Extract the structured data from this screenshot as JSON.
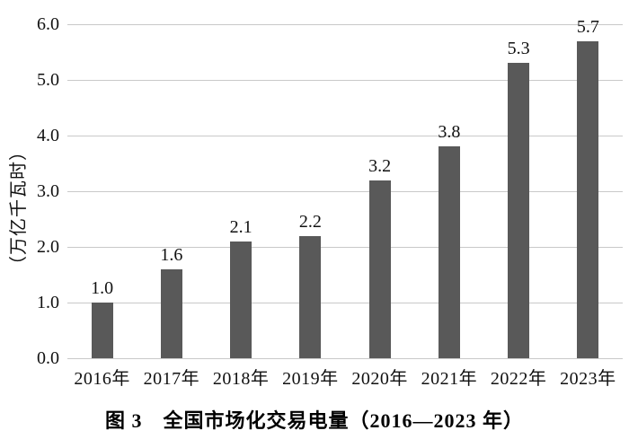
{
  "figure": {
    "caption": "图 3　全国市场化交易电量（2016—2023 年）"
  },
  "chart_data": {
    "type": "bar",
    "title": "图 3　全国市场化交易电量（2016—2023 年）",
    "categories": [
      "2016年",
      "2017年",
      "2018年",
      "2019年",
      "2020年",
      "2021年",
      "2022年",
      "2023年"
    ],
    "values": [
      1.0,
      1.6,
      2.1,
      2.2,
      3.2,
      3.8,
      5.3,
      5.7
    ],
    "data_labels": [
      "1.0",
      "1.6",
      "2.1",
      "2.2",
      "3.2",
      "3.8",
      "5.3",
      "5.7"
    ],
    "xlabel": "",
    "ylabel": "（万亿千瓦时）",
    "ylim": [
      0,
      6
    ],
    "yticks": [
      0,
      1,
      2,
      3,
      4,
      5,
      6
    ],
    "ytick_labels": [
      "0.0",
      "1.0",
      "2.0",
      "3.0",
      "4.0",
      "5.0",
      "6.0"
    ],
    "grid": true,
    "legend": false,
    "bar_color": "#595959",
    "gridline_color": "#c9c9c9",
    "text_color": "#111111"
  }
}
